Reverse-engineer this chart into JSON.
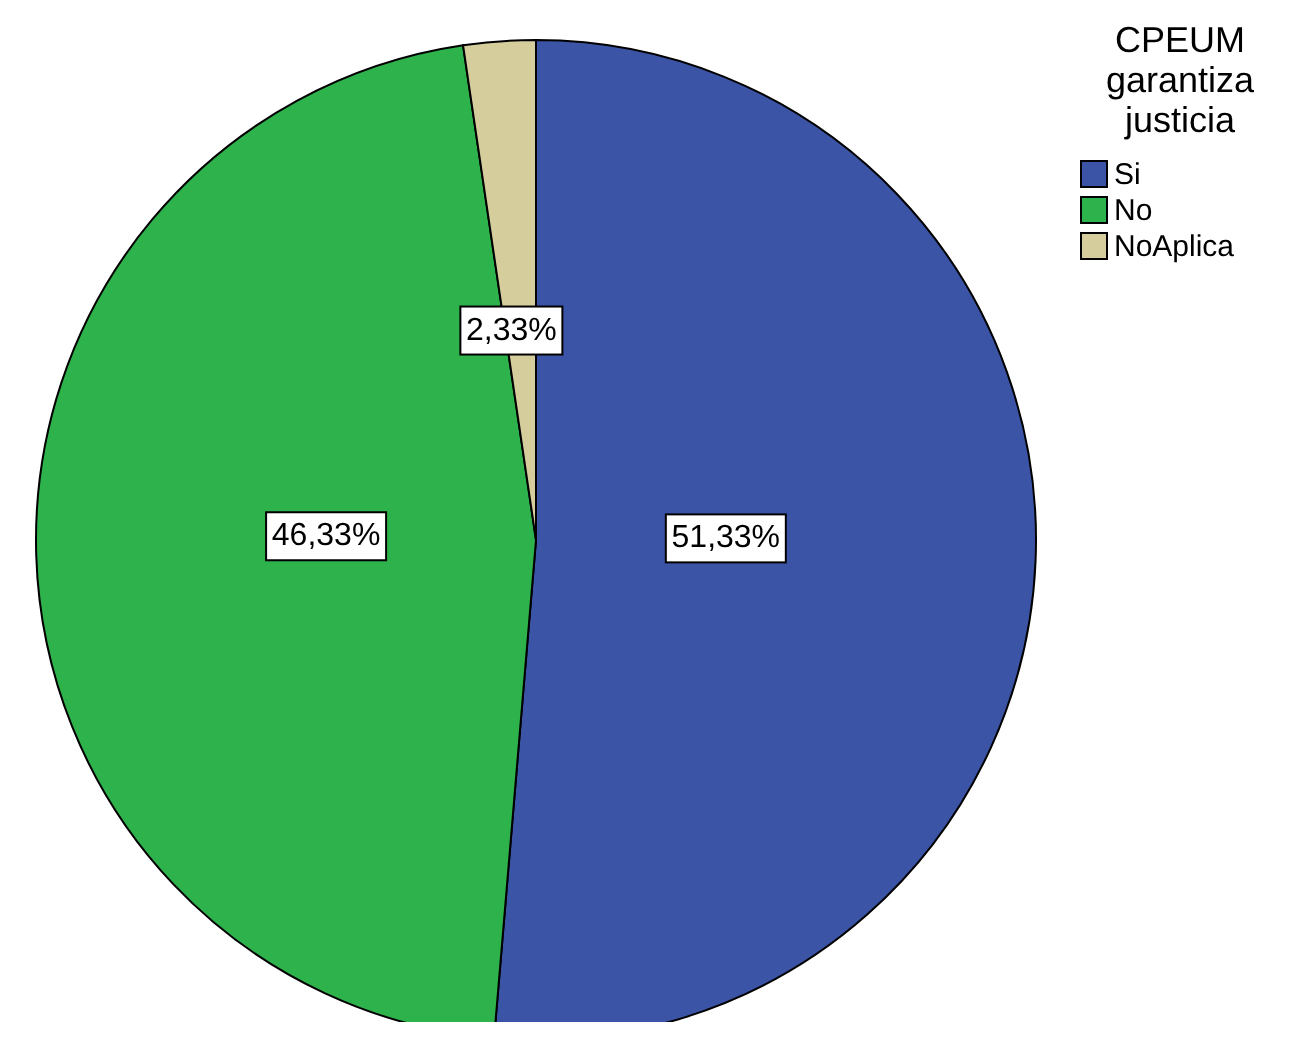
{
  "chart_data": {
    "type": "pie",
    "legend_title": "CPEUM garantiza justicia",
    "categories": [
      "Si",
      "No",
      "NoAplica"
    ],
    "values": [
      51.33,
      46.33,
      2.33
    ],
    "colors": [
      "#3b54a5",
      "#2eb24b",
      "#d6cd9c"
    ],
    "value_labels": [
      "51,33%",
      "46,33%",
      "2,33%"
    ],
    "legend": "top right"
  }
}
